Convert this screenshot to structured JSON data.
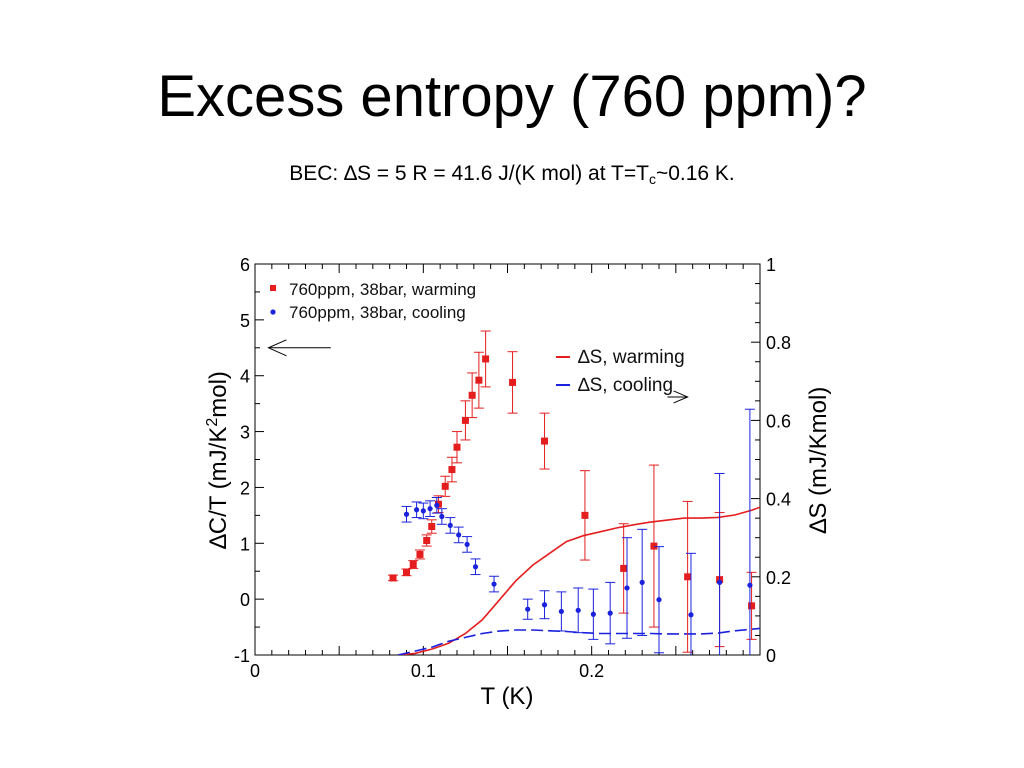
{
  "slide": {
    "title": "Excess entropy (760 ppm)?",
    "subtitle_main": "BEC: ∆S = 5 R = 41.6 J/(K mol) at T=T",
    "subtitle_sub": "c",
    "subtitle_tail": "~0.16 K."
  },
  "colors": {
    "red": "#e41e1e",
    "blue": "#1a22dd",
    "black": "#000000"
  },
  "chart_data": {
    "type": "scatter",
    "xlabel": "T  (K)",
    "ylabel_left_main": "∆C/T  (mJ/K",
    "ylabel_left_sup": "2",
    "ylabel_left_tail": "mol)",
    "ylabel_right": "∆S  (mJ/Kmol)",
    "xlim": [
      0,
      0.3
    ],
    "ylim_left": [
      -1,
      6
    ],
    "ylim_right": [
      0,
      1
    ],
    "x_ticks": [
      "0",
      "0.1",
      "0.2"
    ],
    "x_tick_values": [
      0,
      0.1,
      0.2
    ],
    "y_left_ticks": [
      "-1",
      "0",
      "1",
      "2",
      "3",
      "4",
      "5",
      "6"
    ],
    "y_left_tick_values": [
      -1,
      0,
      1,
      2,
      3,
      4,
      5,
      6
    ],
    "y_right_ticks": [
      "0",
      "0.2",
      "0.4",
      "0.6",
      "0.8",
      "1"
    ],
    "y_right_tick_values": [
      0,
      0.2,
      0.4,
      0.6,
      0.8,
      1
    ],
    "grid": false,
    "legend_markers": {
      "position": "top-left",
      "entries": [
        "760ppm, 38bar, warming",
        "760ppm, 38bar, cooling"
      ]
    },
    "legend_lines": {
      "position": "upper-right",
      "entries": [
        "∆S, warming",
        "∆S, cooling"
      ]
    },
    "series": [
      {
        "name": "760ppm, 38bar, warming",
        "axis": "left",
        "marker": "square",
        "color": "#e41e1e",
        "points": [
          {
            "x": 0.082,
            "y": 0.38,
            "err": 0.05
          },
          {
            "x": 0.09,
            "y": 0.48,
            "err": 0.06
          },
          {
            "x": 0.094,
            "y": 0.62,
            "err": 0.07
          },
          {
            "x": 0.098,
            "y": 0.8,
            "err": 0.08
          },
          {
            "x": 0.102,
            "y": 1.05,
            "err": 0.1
          },
          {
            "x": 0.105,
            "y": 1.3,
            "err": 0.12
          },
          {
            "x": 0.109,
            "y": 1.7,
            "err": 0.15
          },
          {
            "x": 0.113,
            "y": 2.02,
            "err": 0.18
          },
          {
            "x": 0.117,
            "y": 2.32,
            "err": 0.22
          },
          {
            "x": 0.12,
            "y": 2.72,
            "err": 0.28
          },
          {
            "x": 0.125,
            "y": 3.2,
            "err": 0.35
          },
          {
            "x": 0.129,
            "y": 3.65,
            "err": 0.4
          },
          {
            "x": 0.133,
            "y": 3.92,
            "err": 0.5
          },
          {
            "x": 0.137,
            "y": 4.3,
            "err": 0.5
          },
          {
            "x": 0.153,
            "y": 3.88,
            "err": 0.55
          },
          {
            "x": 0.172,
            "y": 2.83,
            "err": 0.5
          },
          {
            "x": 0.196,
            "y": 1.5,
            "err": 0.8
          },
          {
            "x": 0.219,
            "y": 0.55,
            "err": 0.8
          },
          {
            "x": 0.237,
            "y": 0.95,
            "err": 1.45
          },
          {
            "x": 0.257,
            "y": 0.4,
            "err": 1.35
          },
          {
            "x": 0.276,
            "y": 0.35,
            "err": 1.2
          },
          {
            "x": 0.295,
            "y": -0.12,
            "err": 0.6
          }
        ]
      },
      {
        "name": "760ppm, 38bar, cooling",
        "axis": "left",
        "marker": "circle",
        "color": "#1a22dd",
        "points": [
          {
            "x": 0.09,
            "y": 1.52,
            "err": 0.14
          },
          {
            "x": 0.096,
            "y": 1.6,
            "err": 0.14
          },
          {
            "x": 0.1,
            "y": 1.58,
            "err": 0.14
          },
          {
            "x": 0.104,
            "y": 1.62,
            "err": 0.14
          },
          {
            "x": 0.108,
            "y": 1.68,
            "err": 0.14
          },
          {
            "x": 0.111,
            "y": 1.48,
            "err": 0.14
          },
          {
            "x": 0.116,
            "y": 1.32,
            "err": 0.14
          },
          {
            "x": 0.121,
            "y": 1.15,
            "err": 0.14
          },
          {
            "x": 0.126,
            "y": 0.98,
            "err": 0.14
          },
          {
            "x": 0.131,
            "y": 0.58,
            "err": 0.14
          },
          {
            "x": 0.142,
            "y": 0.27,
            "err": 0.14
          },
          {
            "x": 0.162,
            "y": -0.18,
            "err": 0.18
          },
          {
            "x": 0.172,
            "y": -0.1,
            "err": 0.25
          },
          {
            "x": 0.182,
            "y": -0.22,
            "err": 0.35
          },
          {
            "x": 0.192,
            "y": -0.2,
            "err": 0.4
          },
          {
            "x": 0.201,
            "y": -0.27,
            "err": 0.45
          },
          {
            "x": 0.211,
            "y": -0.25,
            "err": 0.55
          },
          {
            "x": 0.221,
            "y": 0.2,
            "err": 0.9
          },
          {
            "x": 0.23,
            "y": 0.3,
            "err": 0.95
          },
          {
            "x": 0.24,
            "y": -0.01,
            "err": 0.95
          },
          {
            "x": 0.259,
            "y": -0.28,
            "err": 1.1
          },
          {
            "x": 0.276,
            "y": 0.3,
            "err": 1.95
          },
          {
            "x": 0.294,
            "y": 0.25,
            "err": 3.15
          }
        ]
      },
      {
        "name": "∆S, warming",
        "axis": "right",
        "style": "solid",
        "color": "#e41e1e",
        "x": [
          0.085,
          0.095,
          0.105,
          0.115,
          0.125,
          0.135,
          0.145,
          0.155,
          0.165,
          0.175,
          0.185,
          0.195,
          0.205,
          0.215,
          0.225,
          0.235,
          0.245,
          0.255,
          0.265,
          0.275,
          0.285,
          0.295,
          0.3
        ],
        "y": [
          0.0,
          0.004,
          0.015,
          0.03,
          0.055,
          0.09,
          0.14,
          0.19,
          0.23,
          0.26,
          0.29,
          0.305,
          0.315,
          0.325,
          0.333,
          0.34,
          0.345,
          0.35,
          0.35,
          0.352,
          0.358,
          0.37,
          0.378
        ]
      },
      {
        "name": "∆S, cooling",
        "axis": "right",
        "style": "dashed",
        "color": "#1a22dd",
        "x": [
          0.085,
          0.095,
          0.105,
          0.115,
          0.125,
          0.135,
          0.145,
          0.155,
          0.165,
          0.175,
          0.185,
          0.195,
          0.205,
          0.215,
          0.225,
          0.235,
          0.245,
          0.255,
          0.265,
          0.275,
          0.285,
          0.295,
          0.3
        ],
        "y": [
          0.0,
          0.01,
          0.02,
          0.035,
          0.045,
          0.055,
          0.061,
          0.064,
          0.064,
          0.062,
          0.06,
          0.057,
          0.055,
          0.055,
          0.055,
          0.055,
          0.054,
          0.054,
          0.054,
          0.056,
          0.062,
          0.066,
          0.068
        ]
      }
    ],
    "annotations": [
      {
        "type": "arrow",
        "points_to": "left axis",
        "at_y_left": 4.5,
        "from_x": 0.045,
        "to_x": 0.008
      },
      {
        "type": "arrow",
        "points_to": "right axis",
        "at_y_right": 0.66,
        "from_x": 0.245,
        "to_x": 0.257
      }
    ]
  }
}
